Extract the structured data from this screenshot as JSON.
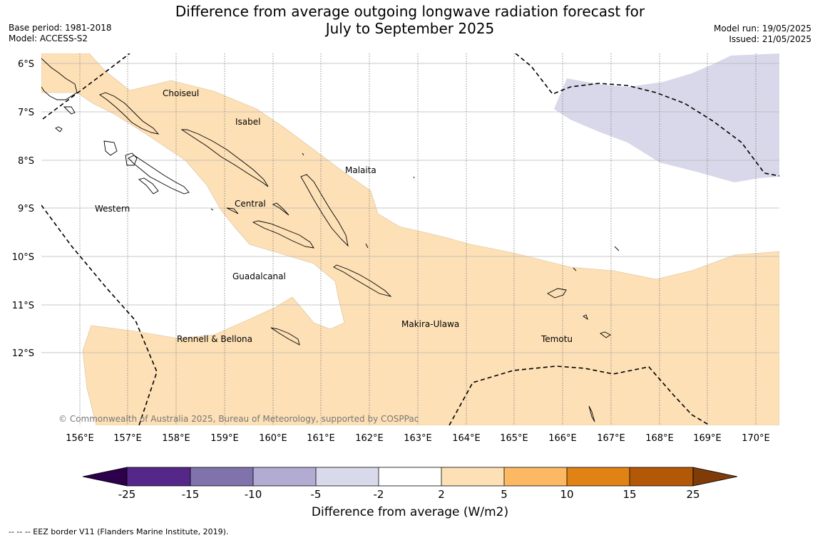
{
  "header": {
    "title_line1": "Difference from average outgoing longwave radiation forecast for",
    "title_line2": "July to September 2025",
    "base_period": "Base period: 1981-2018",
    "model": "Model: ACCESS-S2",
    "model_run": "Model run: 19/05/2025",
    "issued": "Issued: 21/05/2025"
  },
  "map": {
    "lat_ticks": [
      "6°S",
      "7°S",
      "8°S",
      "9°S",
      "10°S",
      "11°S",
      "12°S"
    ],
    "lon_ticks": [
      "156°E",
      "157°E",
      "158°E",
      "159°E",
      "160°E",
      "161°E",
      "162°E",
      "163°E",
      "164°E",
      "165°E",
      "166°E",
      "167°E",
      "168°E",
      "169°E",
      "170°E"
    ],
    "region_labels": {
      "choiseul": "Choiseul",
      "isabel": "Isabel",
      "malaita": "Malaita",
      "western": "Western",
      "central": "Central",
      "guadalcanal": "Guadalcanal",
      "makira_ulawa": "Makira-Ulawa",
      "temotu": "Temotu",
      "rennell_bellona": "Rennell & Bellona"
    },
    "copyright": "© Commonwealth of Australia 2025, Bureau of Meteorology, supported by COSPPac",
    "colors": {
      "positive_2_5": "#fde0b6",
      "negative_5_2": "#d8d8ea"
    }
  },
  "colorbar": {
    "title": "Difference from average (W/m2)",
    "ticks": [
      "-25",
      "-15",
      "-10",
      "-5",
      "-2",
      "2",
      "5",
      "10",
      "15",
      "25"
    ],
    "colors": [
      "#2d004b",
      "#542789",
      "#8073ac",
      "#b2abd2",
      "#d8daeb",
      "#ffffff",
      "#fee0b6",
      "#fdb863",
      "#e08214",
      "#b35806",
      "#7f3b08"
    ]
  },
  "footer": {
    "eez_note": "--  --  -- EEZ border V11 (Flanders Marine Institute, 2019)."
  }
}
